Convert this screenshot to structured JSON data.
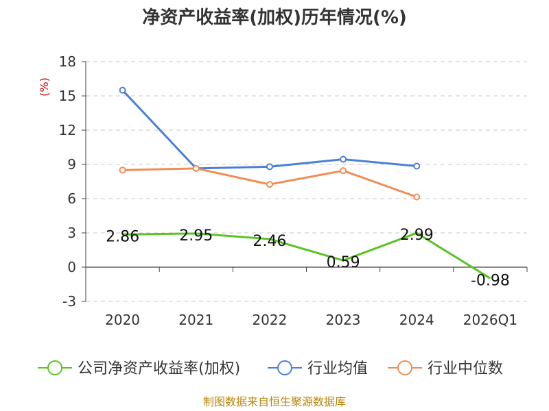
{
  "chart_data": {
    "type": "line",
    "title": "净资产收益率(加权)历年情况(%)",
    "ylabel": "(%)",
    "categories": [
      "2020",
      "2021",
      "2022",
      "2023",
      "2024",
      "2026Q1"
    ],
    "y_ticks": [
      -3,
      0,
      3,
      6,
      9,
      12,
      15,
      18
    ],
    "ylim": [
      -3,
      18
    ],
    "grid": true,
    "legend_position": "bottom",
    "series": [
      {
        "name": "公司净资产收益率(加权)",
        "color": "#5ac424",
        "values": [
          2.86,
          2.95,
          2.46,
          0.59,
          2.99,
          -0.98
        ],
        "labels": [
          "2.86",
          "2.95",
          "2.46",
          "0.59",
          "2.99",
          "-0.98"
        ]
      },
      {
        "name": "行业均值",
        "color": "#4a7fd9",
        "values": [
          15.5,
          8.65,
          8.8,
          9.45,
          8.85,
          null
        ]
      },
      {
        "name": "行业中位数",
        "color": "#f28c55",
        "values": [
          8.5,
          8.65,
          7.25,
          8.45,
          6.15,
          null
        ]
      }
    ]
  },
  "source": "制图数据来自恒生聚源数据库"
}
